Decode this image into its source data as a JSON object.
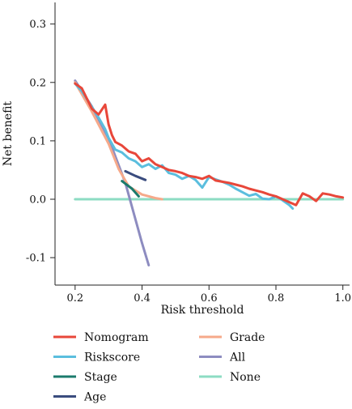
{
  "chart_data": {
    "type": "line",
    "title": "",
    "xlabel": "Risk threshold",
    "ylabel": "Net benefit",
    "xlim": [
      0.14,
      1.02
    ],
    "ylim": [
      -0.147,
      0.337
    ],
    "xticks": [
      0.2,
      0.4,
      0.6,
      0.8,
      1.0
    ],
    "xtick_labels": [
      "0.2",
      "0.4",
      "0.6",
      "0.8",
      "1.0"
    ],
    "yticks": [
      -0.1,
      0.0,
      0.1,
      0.2,
      0.3
    ],
    "ytick_labels": [
      "-0.1",
      "0.0",
      "0.1",
      "0.2",
      "0.3"
    ],
    "grid": false,
    "legend_position": "bottom",
    "series": [
      {
        "name": "None",
        "color": "#8ddcc3",
        "x": [
          0.2,
          1.0
        ],
        "y": [
          0.0,
          0.0
        ]
      },
      {
        "name": "All",
        "color": "#8d8cc0",
        "x": [
          0.2,
          0.25,
          0.3,
          0.35,
          0.4,
          0.42
        ],
        "y": [
          0.203,
          0.159,
          0.104,
          0.028,
          -0.075,
          -0.113
        ]
      },
      {
        "name": "Grade",
        "color": "#f6a98a",
        "x": [
          0.2,
          0.25,
          0.3,
          0.33,
          0.36,
          0.4,
          0.44,
          0.46
        ],
        "y": [
          0.2,
          0.15,
          0.095,
          0.052,
          0.022,
          0.008,
          0.002,
          0.0
        ]
      },
      {
        "name": "Stage",
        "color": "#1b7b6c",
        "x": [
          0.34,
          0.37,
          0.39
        ],
        "y": [
          0.031,
          0.018,
          0.005
        ]
      },
      {
        "name": "Age",
        "color": "#3a4c7e",
        "x": [
          0.35,
          0.38,
          0.41
        ],
        "y": [
          0.048,
          0.04,
          0.033
        ]
      },
      {
        "name": "Riskscore",
        "color": "#5bbede",
        "x": [
          0.2,
          0.22,
          0.25,
          0.27,
          0.29,
          0.3,
          0.32,
          0.34,
          0.36,
          0.38,
          0.4,
          0.42,
          0.44,
          0.46,
          0.48,
          0.5,
          0.52,
          0.54,
          0.56,
          0.58,
          0.6,
          0.62,
          0.64,
          0.66,
          0.68,
          0.7,
          0.72,
          0.74,
          0.76,
          0.78,
          0.8,
          0.82,
          0.84,
          0.85
        ],
        "y": [
          0.198,
          0.185,
          0.158,
          0.14,
          0.12,
          0.105,
          0.085,
          0.08,
          0.07,
          0.065,
          0.055,
          0.06,
          0.052,
          0.058,
          0.045,
          0.042,
          0.035,
          0.04,
          0.033,
          0.02,
          0.038,
          0.034,
          0.03,
          0.025,
          0.018,
          0.012,
          0.006,
          0.009,
          0.001,
          0.0,
          0.005,
          -0.002,
          -0.01,
          -0.016
        ]
      },
      {
        "name": "Nomogram",
        "color": "#e8473a",
        "x": [
          0.2,
          0.22,
          0.25,
          0.27,
          0.29,
          0.3,
          0.31,
          0.32,
          0.34,
          0.36,
          0.38,
          0.4,
          0.42,
          0.44,
          0.46,
          0.48,
          0.5,
          0.52,
          0.54,
          0.56,
          0.58,
          0.6,
          0.62,
          0.64,
          0.66,
          0.68,
          0.7,
          0.72,
          0.74,
          0.76,
          0.78,
          0.8,
          0.82,
          0.84,
          0.86,
          0.88,
          0.9,
          0.92,
          0.94,
          0.96,
          0.98,
          1.0
        ],
        "y": [
          0.198,
          0.19,
          0.155,
          0.145,
          0.162,
          0.128,
          0.11,
          0.098,
          0.092,
          0.082,
          0.078,
          0.065,
          0.07,
          0.06,
          0.055,
          0.05,
          0.048,
          0.045,
          0.04,
          0.038,
          0.035,
          0.04,
          0.032,
          0.03,
          0.028,
          0.025,
          0.022,
          0.018,
          0.015,
          0.012,
          0.008,
          0.005,
          0.0,
          -0.005,
          -0.01,
          0.01,
          0.005,
          -0.003,
          0.01,
          0.008,
          0.005,
          0.003
        ]
      }
    ],
    "legend_order": [
      "Nomogram",
      "Riskscore",
      "Stage",
      "Age",
      "Grade",
      "All",
      "None"
    ]
  }
}
